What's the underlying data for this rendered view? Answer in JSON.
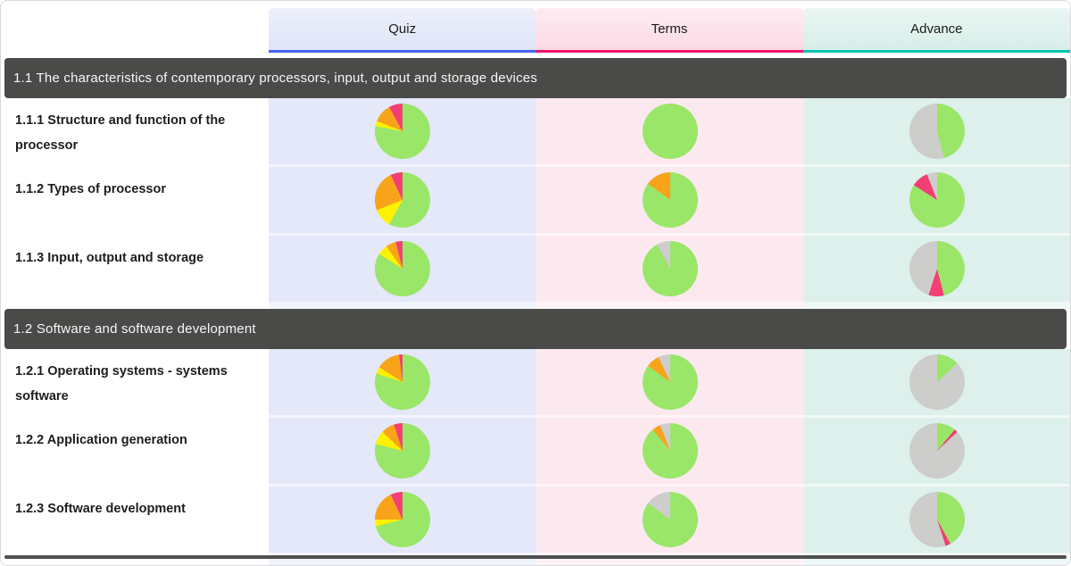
{
  "colors": {
    "green": "#9ae668",
    "orange": "#f8a41b",
    "yellow": "#fff200",
    "pink": "#f43e76",
    "gray": "#cdcdcb",
    "quiz_underline": "#4862f5",
    "terms_underline": "#f1156e",
    "advance_underline": "#00c2ab",
    "quiz_bg": "#e5e8f9",
    "terms_bg": "#fce9f0",
    "advance_bg": "#ddf0ec",
    "quiz_header_bg": "#dfe4f8",
    "terms_header_bg": "#fbdbe5",
    "advance_header_bg": "#d8eee9",
    "section_bar_bg": "#4a4a48"
  },
  "columns": [
    {
      "id": "quiz",
      "label": "Quiz"
    },
    {
      "id": "terms",
      "label": "Terms"
    },
    {
      "id": "advance",
      "label": "Advance"
    }
  ],
  "sections": [
    {
      "title": "1.1 The characteristics of contemporary processors, input, output and storage devices",
      "rows": [
        {
          "label": "1.1.1 Structure and function of the processor",
          "pies": {
            "quiz": [
              [
                "green",
                78
              ],
              [
                "yellow",
                3
              ],
              [
                "orange",
                11
              ],
              [
                "pink",
                8
              ]
            ],
            "terms": [
              [
                "green",
                100
              ]
            ],
            "advance": [
              [
                "green",
                46
              ],
              [
                "gray",
                54
              ]
            ]
          }
        },
        {
          "label": "1.1.2 Types of processor",
          "pies": {
            "quiz": [
              [
                "green",
                58
              ],
              [
                "yellow",
                11
              ],
              [
                "orange",
                24
              ],
              [
                "pink",
                7
              ]
            ],
            "terms": [
              [
                "green",
                85
              ],
              [
                "orange",
                15
              ]
            ],
            "advance": [
              [
                "green",
                84
              ],
              [
                "pink",
                10
              ],
              [
                "gray",
                6
              ]
            ]
          }
        },
        {
          "label": "1.1.3 Input, output and storage",
          "pies": {
            "quiz": [
              [
                "green",
                84
              ],
              [
                "yellow",
                6
              ],
              [
                "orange",
                6
              ],
              [
                "pink",
                4
              ]
            ],
            "terms": [
              [
                "green",
                92
              ],
              [
                "gray",
                8
              ]
            ],
            "advance": [
              [
                "green",
                46
              ],
              [
                "pink",
                9
              ],
              [
                "gray",
                45
              ]
            ]
          }
        }
      ]
    },
    {
      "title": "1.2 Software and software development",
      "rows": [
        {
          "label": "1.2.1 Operating systems - systems software",
          "pies": {
            "quiz": [
              [
                "green",
                80
              ],
              [
                "yellow",
                4
              ],
              [
                "orange",
                14
              ],
              [
                "pink",
                2
              ]
            ],
            "terms": [
              [
                "green",
                85
              ],
              [
                "orange",
                8
              ],
              [
                "gray",
                7
              ]
            ],
            "advance": [
              [
                "green",
                13
              ],
              [
                "gray",
                87
              ]
            ]
          }
        },
        {
          "label": "1.2.2 Application generation",
          "pies": {
            "quiz": [
              [
                "green",
                79
              ],
              [
                "yellow",
                8
              ],
              [
                "orange",
                8
              ],
              [
                "pink",
                5
              ]
            ],
            "terms": [
              [
                "green",
                89
              ],
              [
                "orange",
                5
              ],
              [
                "gray",
                6
              ]
            ],
            "advance": [
              [
                "green",
                11
              ],
              [
                "pink",
                2
              ],
              [
                "gray",
                87
              ]
            ]
          }
        },
        {
          "label": "1.2.3 Software development",
          "pies": {
            "quiz": [
              [
                "green",
                71
              ],
              [
                "yellow",
                4
              ],
              [
                "orange",
                18
              ],
              [
                "pink",
                7
              ]
            ],
            "terms": [
              [
                "green",
                85
              ],
              [
                "gray",
                15
              ]
            ],
            "advance": [
              [
                "green",
                42
              ],
              [
                "pink",
                3
              ],
              [
                "gray",
                55
              ]
            ]
          }
        }
      ]
    }
  ]
}
